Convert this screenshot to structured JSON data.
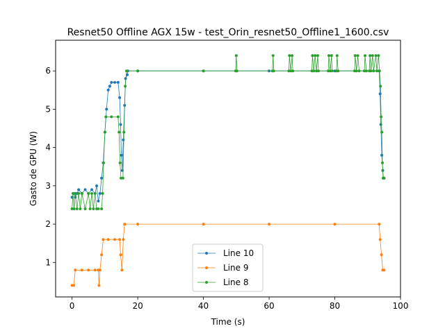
{
  "chart_data": {
    "type": "line",
    "title": "Resnet50 Offline AGX 15w - test_Orin_resnet50_Offline1_1600.csv",
    "xlabel": "Time (s)",
    "ylabel": "Gasto de GPU (W)",
    "xlim": [
      -5,
      100
    ],
    "ylim": [
      0.1,
      6.8
    ],
    "xticks": [
      0,
      20,
      40,
      60,
      80,
      100
    ],
    "yticks": [
      1,
      2,
      3,
      4,
      5,
      6
    ],
    "grid": false,
    "legend_position": "bottom-center",
    "series": [
      {
        "name": "Line 10",
        "color": "#1f77b4",
        "points": [
          [
            0,
            2.7
          ],
          [
            0.5,
            2.8
          ],
          [
            1,
            2.7
          ],
          [
            1.5,
            2.8
          ],
          [
            2,
            2.9
          ],
          [
            3,
            2.8
          ],
          [
            4,
            2.9
          ],
          [
            5,
            2.8
          ],
          [
            6,
            2.9
          ],
          [
            7,
            2.8
          ],
          [
            7.5,
            3.0
          ],
          [
            8,
            2.6
          ],
          [
            8.5,
            2.8
          ],
          [
            9,
            3.2
          ],
          [
            9.5,
            3.6
          ],
          [
            10,
            4.4
          ],
          [
            10.5,
            5.0
          ],
          [
            11,
            5.5
          ],
          [
            11.5,
            5.6
          ],
          [
            12,
            5.7
          ],
          [
            13,
            5.7
          ],
          [
            14,
            5.7
          ],
          [
            14.5,
            5.3
          ],
          [
            14.8,
            4.6
          ],
          [
            15,
            3.8
          ],
          [
            15.3,
            3.4
          ],
          [
            15.6,
            4.2
          ],
          [
            16,
            5.1
          ],
          [
            16.3,
            5.8
          ],
          [
            16.8,
            5.9
          ],
          [
            17,
            6.0
          ],
          [
            20,
            6.0
          ],
          [
            40,
            6.0
          ],
          [
            60,
            6.0
          ],
          [
            80,
            6.0
          ],
          [
            93.5,
            6.0
          ],
          [
            93.8,
            5.4
          ],
          [
            94,
            4.6
          ],
          [
            94.3,
            3.8
          ],
          [
            94.6,
            3.4
          ],
          [
            94.8,
            3.2
          ],
          [
            95,
            3.2
          ]
        ]
      },
      {
        "name": "Line 9",
        "color": "#ff7f0e",
        "points": [
          [
            0,
            0.4
          ],
          [
            0.5,
            0.4
          ],
          [
            1,
            0.8
          ],
          [
            3,
            0.8
          ],
          [
            5,
            0.8
          ],
          [
            7,
            0.8
          ],
          [
            8,
            0.8
          ],
          [
            8.2,
            0.4
          ],
          [
            8.5,
            0.8
          ],
          [
            9,
            1.2
          ],
          [
            9.5,
            1.6
          ],
          [
            11,
            1.6
          ],
          [
            13,
            1.6
          ],
          [
            14.5,
            1.6
          ],
          [
            14.8,
            1.2
          ],
          [
            15.2,
            0.8
          ],
          [
            15.6,
            1.6
          ],
          [
            16,
            2.0
          ],
          [
            20,
            2.0
          ],
          [
            40,
            2.0
          ],
          [
            60,
            2.0
          ],
          [
            80,
            2.0
          ],
          [
            93.5,
            2.0
          ],
          [
            93.8,
            1.6
          ],
          [
            94.2,
            1.2
          ],
          [
            94.6,
            0.8
          ],
          [
            95,
            0.8
          ]
        ]
      },
      {
        "name": "Line 8",
        "color": "#2ca02c",
        "points": [
          [
            0,
            2.4
          ],
          [
            0.3,
            2.8
          ],
          [
            0.6,
            2.4
          ],
          [
            1,
            2.8
          ],
          [
            1.5,
            2.4
          ],
          [
            2,
            2.8
          ],
          [
            2.5,
            2.4
          ],
          [
            3,
            2.8
          ],
          [
            4,
            2.4
          ],
          [
            5,
            2.8
          ],
          [
            5.5,
            2.4
          ],
          [
            6,
            2.8
          ],
          [
            6.5,
            2.4
          ],
          [
            7,
            2.8
          ],
          [
            7.5,
            2.4
          ],
          [
            8,
            2.4
          ],
          [
            9,
            2.4
          ],
          [
            9.3,
            2.8
          ],
          [
            9.6,
            3.6
          ],
          [
            10,
            4.4
          ],
          [
            10.3,
            4.8
          ],
          [
            12,
            4.8
          ],
          [
            14,
            4.8
          ],
          [
            14.3,
            4.4
          ],
          [
            14.6,
            3.6
          ],
          [
            14.9,
            3.2
          ],
          [
            15.5,
            3.2
          ],
          [
            15.8,
            4.4
          ],
          [
            16.2,
            5.6
          ],
          [
            16.6,
            6.0
          ],
          [
            20,
            6.0
          ],
          [
            40,
            6.0
          ],
          [
            49.8,
            6.0
          ],
          [
            50,
            6.4
          ],
          [
            50.2,
            6.0
          ],
          [
            61,
            6.0
          ],
          [
            61.2,
            6.4
          ],
          [
            61.4,
            6.0
          ],
          [
            66,
            6.0
          ],
          [
            66.2,
            6.4
          ],
          [
            66.6,
            6.0
          ],
          [
            67,
            6.4
          ],
          [
            67.2,
            6.0
          ],
          [
            73,
            6.0
          ],
          [
            73.2,
            6.4
          ],
          [
            73.6,
            6.0
          ],
          [
            74,
            6.4
          ],
          [
            74.4,
            6.0
          ],
          [
            74.8,
            6.4
          ],
          [
            75,
            6.0
          ],
          [
            78,
            6.0
          ],
          [
            78.2,
            6.4
          ],
          [
            78.6,
            6.0
          ],
          [
            79,
            6.4
          ],
          [
            79.2,
            6.0
          ],
          [
            80.5,
            6.0
          ],
          [
            80.7,
            6.4
          ],
          [
            81,
            6.0
          ],
          [
            86,
            6.0
          ],
          [
            86.2,
            6.4
          ],
          [
            86.6,
            6.0
          ],
          [
            87,
            6.4
          ],
          [
            87.4,
            6.0
          ],
          [
            89,
            6.0
          ],
          [
            89.2,
            6.4
          ],
          [
            89.6,
            6.0
          ],
          [
            90.5,
            6.0
          ],
          [
            90.7,
            6.4
          ],
          [
            91,
            6.0
          ],
          [
            91.5,
            6.4
          ],
          [
            91.8,
            6.0
          ],
          [
            92.5,
            6.4
          ],
          [
            92.8,
            6.0
          ],
          [
            93.3,
            6.4
          ],
          [
            93.6,
            6.0
          ],
          [
            93.9,
            5.6
          ],
          [
            94.1,
            4.8
          ],
          [
            94.3,
            4.4
          ],
          [
            94.5,
            3.6
          ],
          [
            94.7,
            3.2
          ],
          [
            95,
            3.2
          ]
        ]
      }
    ]
  }
}
